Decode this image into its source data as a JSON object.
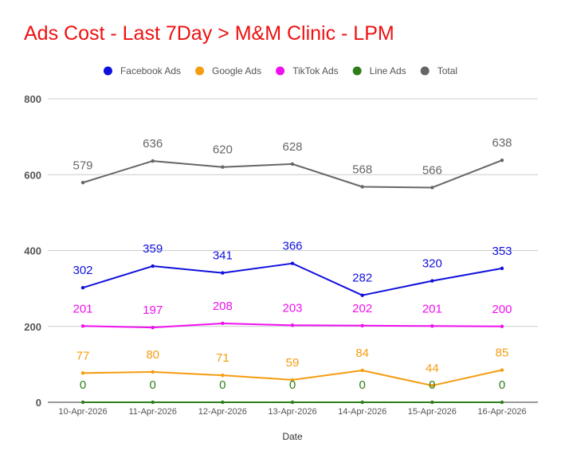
{
  "chart_data": {
    "type": "line",
    "title": "Ads Cost - Last 7Day > M&M Clinic - LPM",
    "xlabel": "Date",
    "ylabel": "",
    "ylim": [
      0,
      800
    ],
    "yticks": [
      0,
      200,
      400,
      600,
      800
    ],
    "grid": true,
    "legend_position": "top",
    "categories": [
      "10-Apr-2026",
      "11-Apr-2026",
      "12-Apr-2026",
      "13-Apr-2026",
      "14-Apr-2026",
      "15-Apr-2026",
      "16-Apr-2026"
    ],
    "series": [
      {
        "name": "Facebook Ads",
        "color": "#1010dd",
        "values": [
          302,
          359,
          341,
          366,
          282,
          320,
          353
        ]
      },
      {
        "name": "Google Ads",
        "color": "#f59c10",
        "values": [
          77,
          80,
          71,
          59,
          84,
          44,
          85
        ]
      },
      {
        "name": "TikTok Ads",
        "color": "#ee11ee",
        "values": [
          201,
          197,
          208,
          203,
          202,
          201,
          200
        ]
      },
      {
        "name": "Line Ads",
        "color": "#2e7d1a",
        "values": [
          0,
          0,
          0,
          0,
          0,
          0,
          0
        ]
      },
      {
        "name": "Total",
        "color": "#666666",
        "values": [
          579,
          636,
          620,
          628,
          568,
          566,
          638
        ]
      }
    ]
  }
}
